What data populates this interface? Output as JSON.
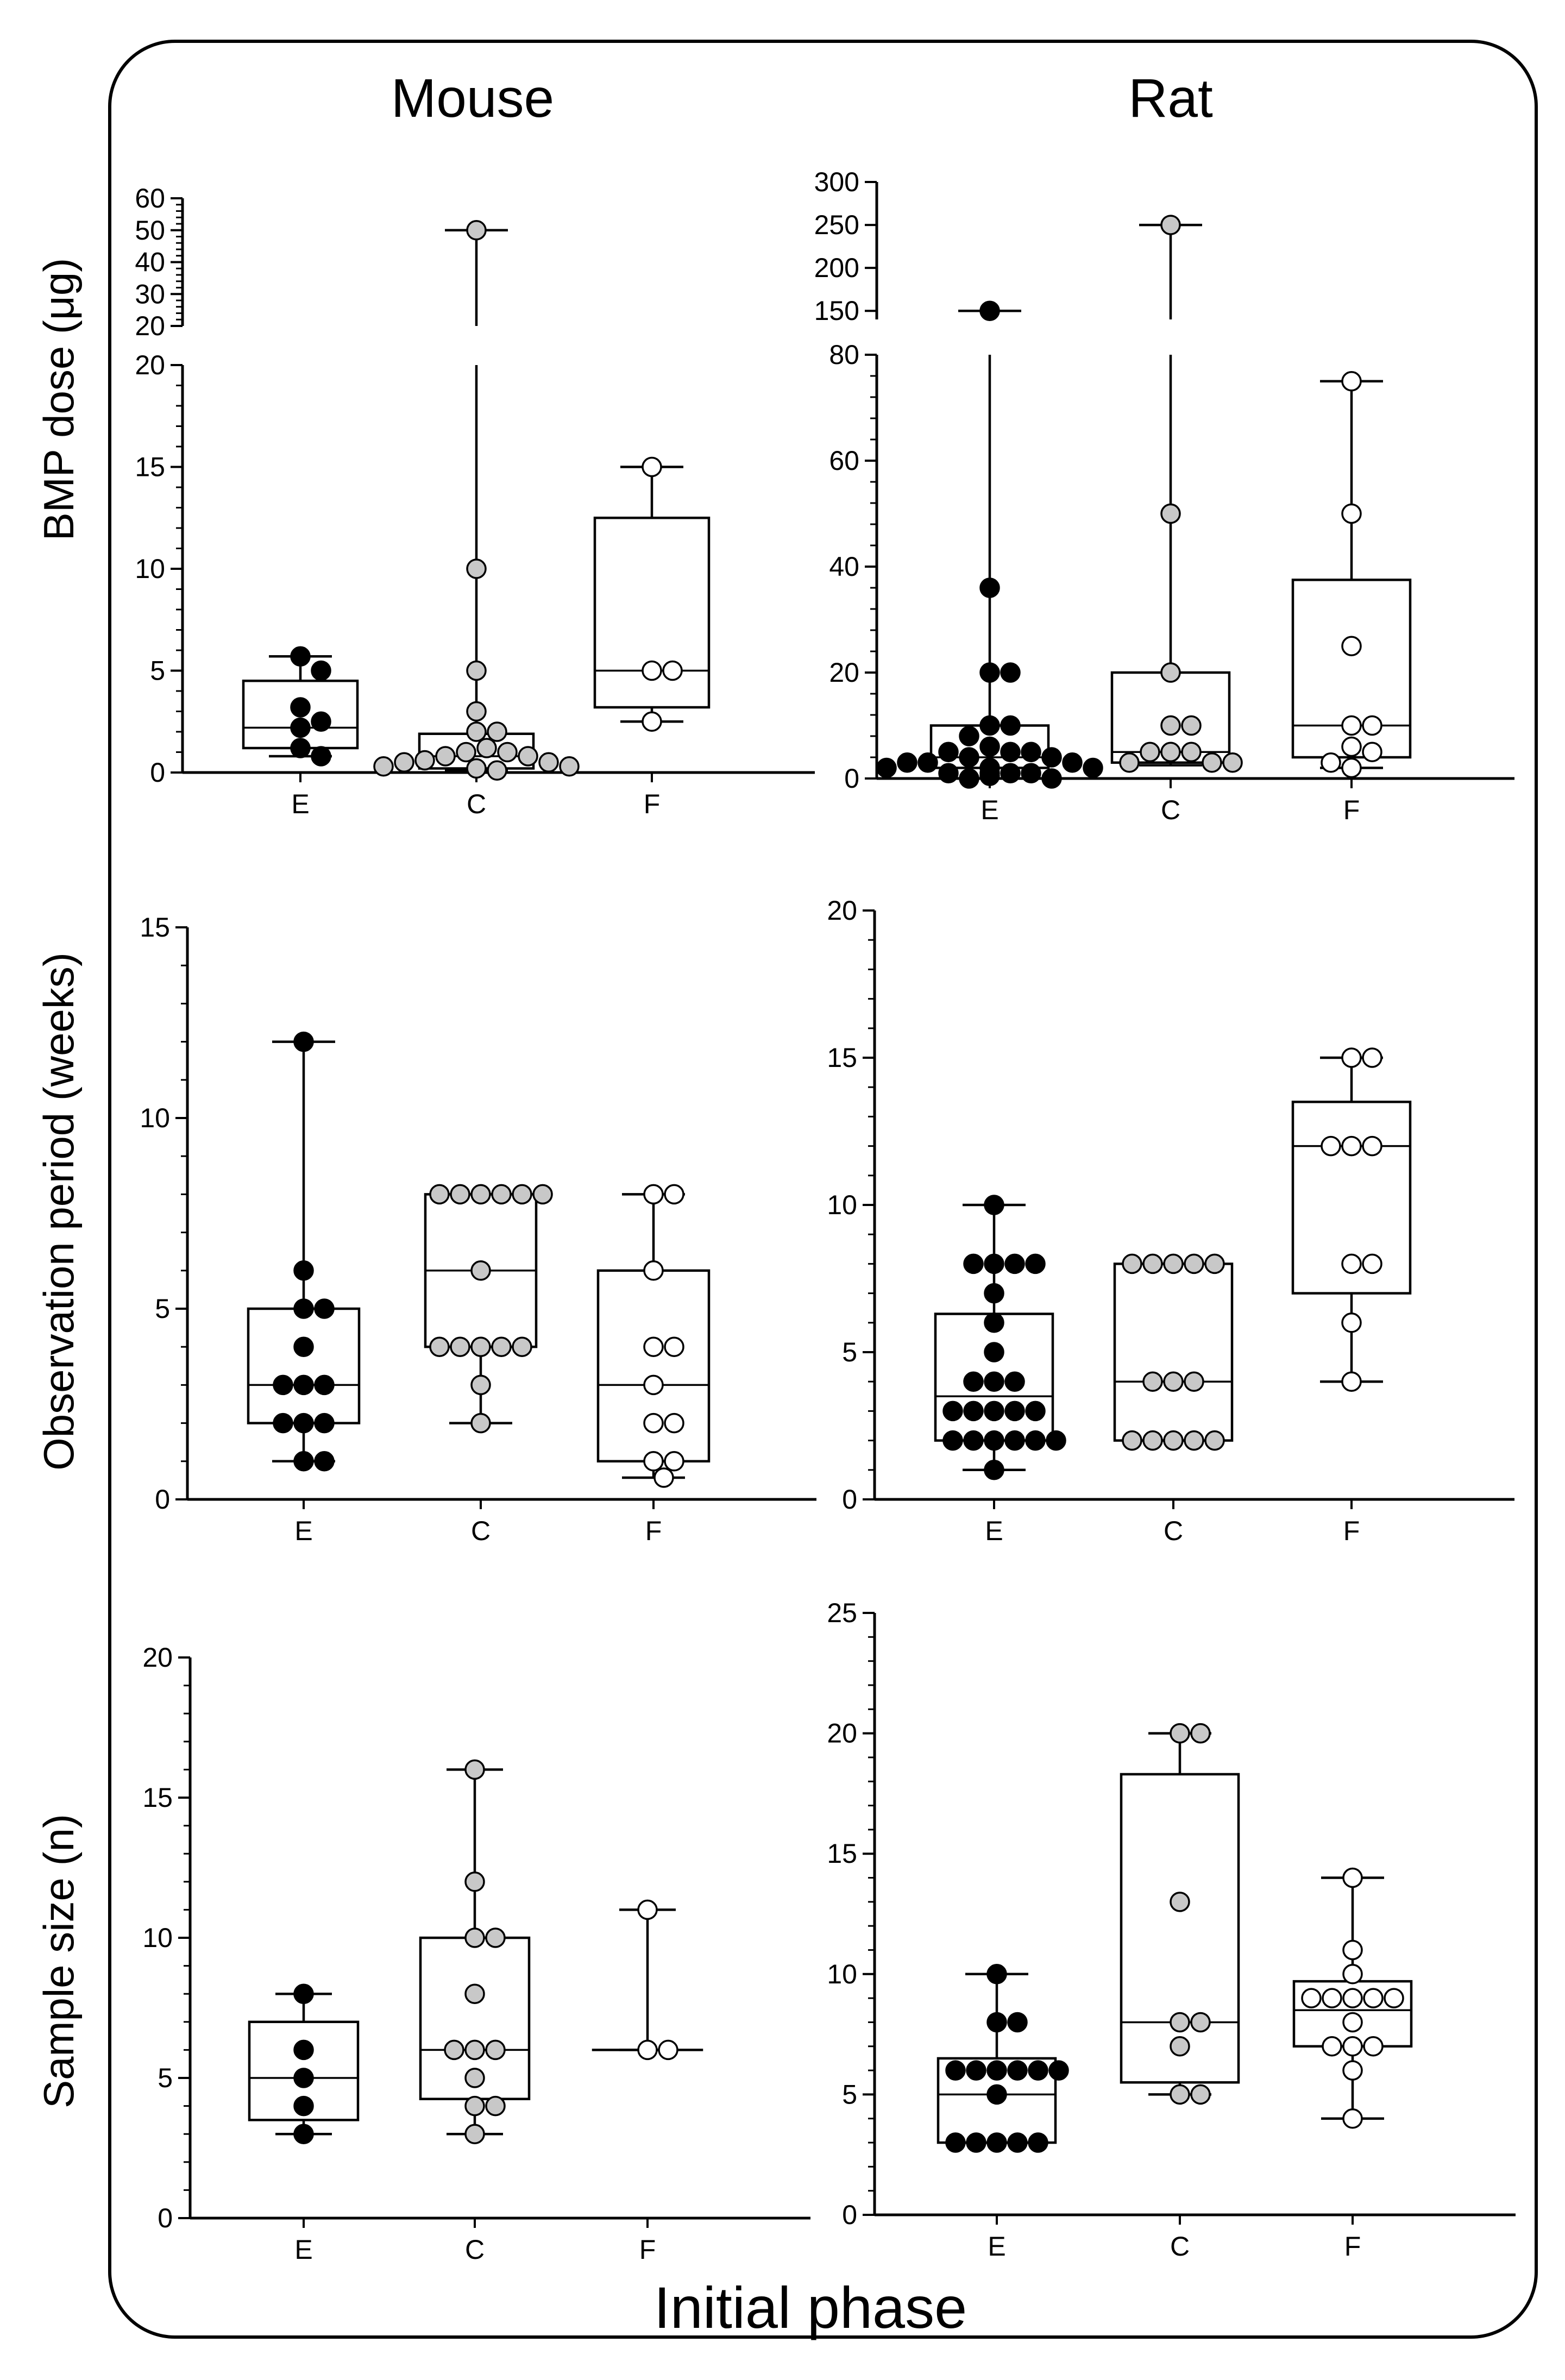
{
  "column_titles": [
    "Mouse",
    "Rat"
  ],
  "xlabel": "Initial phase",
  "row_ylabels": [
    "BMP dose (μg)",
    "Observation period (weeks)",
    "Sample size (n)"
  ],
  "colors": {
    "E": "#000000",
    "C": "#c8c8c8",
    "F": "#ffffff"
  },
  "chart_data": [
    {
      "type": "box",
      "panel": "Mouse – BMP dose",
      "ylabel": "BMP dose (μg)",
      "categories": [
        "E",
        "C",
        "F"
      ],
      "broken_axis": true,
      "ylim_lower": [
        0,
        20
      ],
      "yticks_lower": [
        0,
        5,
        10,
        15,
        20
      ],
      "ylim_upper": [
        20,
        60
      ],
      "yticks_upper": [
        20,
        30,
        40,
        50,
        60
      ],
      "boxes": [
        {
          "category": "E",
          "min": 0.8,
          "q1": 1.2,
          "median": 2.2,
          "q3": 4.5,
          "max": 5.7
        },
        {
          "category": "C",
          "min": 0.1,
          "q1": 0.2,
          "median": 0.8,
          "q3": 1.9,
          "max": 50
        },
        {
          "category": "F",
          "min": 2.5,
          "q1": 3.2,
          "median": 5,
          "q3": 12.5,
          "max": 15
        }
      ],
      "points": [
        {
          "category": "E",
          "values": [
            5.7,
            5.0,
            3.2,
            2.5,
            2.2,
            1.2,
            0.8
          ]
        },
        {
          "category": "C",
          "values": [
            50,
            10,
            5,
            3,
            2,
            2,
            1.2,
            1,
            1,
            0.8,
            0.8,
            0.6,
            0.5,
            0.5,
            0.3,
            0.3,
            0.2,
            0.1
          ]
        },
        {
          "category": "F",
          "values": [
            15,
            5,
            5,
            2.5
          ]
        }
      ]
    },
    {
      "type": "box",
      "panel": "Rat – BMP dose",
      "ylabel": "",
      "categories": [
        "E",
        "C",
        "F"
      ],
      "broken_axis": true,
      "ylim_lower": [
        0,
        80
      ],
      "yticks_lower": [
        0,
        20,
        40,
        60,
        80
      ],
      "ylim_upper": [
        140,
        300
      ],
      "yticks_upper": [
        150,
        200,
        250,
        300
      ],
      "boxes": [
        {
          "category": "E",
          "min": 0,
          "q1": 2,
          "median": 4,
          "q3": 10,
          "max": 150
        },
        {
          "category": "C",
          "min": 2.5,
          "q1": 3,
          "median": 5,
          "q3": 20,
          "max": 250
        },
        {
          "category": "F",
          "min": 2,
          "q1": 4,
          "median": 10,
          "q3": 37.5,
          "max": 75
        }
      ],
      "points": [
        {
          "category": "E",
          "values": [
            150,
            36,
            20,
            20,
            10,
            10,
            8,
            6,
            5,
            5,
            5,
            4,
            4,
            3,
            3,
            3,
            2,
            2,
            2,
            1,
            1,
            1,
            1,
            0.5,
            0,
            0
          ]
        },
        {
          "category": "C",
          "values": [
            250,
            50,
            20,
            10,
            10,
            5,
            5,
            5,
            3,
            3,
            3
          ]
        },
        {
          "category": "F",
          "values": [
            75,
            50,
            25,
            10,
            10,
            6,
            5,
            3,
            2
          ]
        }
      ]
    },
    {
      "type": "box",
      "panel": "Mouse – Observation period",
      "ylabel": "Observation period (weeks)",
      "categories": [
        "E",
        "C",
        "F"
      ],
      "ylim": [
        0,
        15
      ],
      "yticks": [
        0,
        5,
        10,
        15
      ],
      "boxes": [
        {
          "category": "E",
          "min": 1,
          "q1": 2,
          "median": 3,
          "q3": 5,
          "max": 12
        },
        {
          "category": "C",
          "min": 2,
          "q1": 4,
          "median": 6,
          "q3": 8,
          "max": 8
        },
        {
          "category": "F",
          "min": 0.57,
          "q1": 1,
          "median": 3,
          "q3": 6,
          "max": 8
        }
      ],
      "points": [
        {
          "category": "E",
          "values": [
            12,
            6,
            5,
            5,
            4,
            3,
            3,
            3,
            2,
            2,
            2,
            1,
            1
          ]
        },
        {
          "category": "C",
          "values": [
            8,
            8,
            8,
            8,
            8,
            8,
            6,
            4,
            4,
            4,
            4,
            4,
            3,
            2
          ]
        },
        {
          "category": "F",
          "values": [
            8,
            8,
            6,
            4,
            4,
            3,
            2,
            2,
            1,
            1,
            0.57
          ]
        }
      ]
    },
    {
      "type": "box",
      "panel": "Rat – Observation period",
      "ylabel": "",
      "categories": [
        "E",
        "C",
        "F"
      ],
      "ylim": [
        0,
        20
      ],
      "yticks": [
        0,
        5,
        10,
        15,
        20
      ],
      "boxes": [
        {
          "category": "E",
          "min": 1,
          "q1": 2,
          "median": 3.5,
          "q3": 6.3,
          "max": 10
        },
        {
          "category": "C",
          "min": 2,
          "q1": 2,
          "median": 4,
          "q3": 8,
          "max": 8
        },
        {
          "category": "F",
          "min": 4,
          "q1": 7,
          "median": 12,
          "q3": 13.5,
          "max": 15
        }
      ],
      "points": [
        {
          "category": "E",
          "values": [
            10,
            8,
            8,
            8,
            8,
            7,
            6,
            5,
            4,
            4,
            4,
            3,
            3,
            3,
            3,
            3,
            2,
            2,
            2,
            2,
            2,
            2,
            1
          ]
        },
        {
          "category": "C",
          "values": [
            8,
            8,
            8,
            8,
            8,
            4,
            4,
            4,
            2,
            2,
            2,
            2,
            2
          ]
        },
        {
          "category": "F",
          "values": [
            15,
            15,
            12,
            12,
            12,
            8,
            8,
            6,
            4
          ]
        }
      ]
    },
    {
      "type": "box",
      "panel": "Mouse – Sample size",
      "ylabel": "Sample size (n)",
      "categories": [
        "E",
        "C",
        "F"
      ],
      "ylim": [
        0,
        20
      ],
      "yticks": [
        0,
        5,
        10,
        15,
        20
      ],
      "boxes": [
        {
          "category": "E",
          "min": 3,
          "q1": 3.5,
          "median": 5,
          "q3": 7,
          "max": 8
        },
        {
          "category": "C",
          "min": 3,
          "q1": 4.25,
          "median": 6,
          "q3": 10,
          "max": 16
        },
        {
          "category": "F",
          "min": 6,
          "q1": 6,
          "median": 6,
          "q3": 6,
          "max": 11
        }
      ],
      "points": [
        {
          "category": "E",
          "values": [
            8,
            6,
            5,
            4,
            3
          ]
        },
        {
          "category": "C",
          "values": [
            16,
            12,
            10,
            10,
            8,
            6,
            6,
            6,
            5,
            4,
            4,
            3
          ]
        },
        {
          "category": "F",
          "values": [
            11,
            6,
            6
          ]
        }
      ]
    },
    {
      "type": "box",
      "panel": "Rat – Sample size",
      "ylabel": "",
      "categories": [
        "E",
        "C",
        "F"
      ],
      "ylim": [
        0,
        25
      ],
      "yticks": [
        0,
        5,
        10,
        15,
        20,
        25
      ],
      "boxes": [
        {
          "category": "E",
          "min": 3,
          "q1": 3,
          "median": 5,
          "q3": 6.5,
          "max": 10
        },
        {
          "category": "C",
          "min": 5,
          "q1": 5.5,
          "median": 8,
          "q3": 18.3,
          "max": 20
        },
        {
          "category": "F",
          "min": 4,
          "q1": 7,
          "median": 8.5,
          "q3": 9.7,
          "max": 14
        }
      ],
      "points": [
        {
          "category": "E",
          "values": [
            10,
            8,
            8,
            6,
            6,
            6,
            6,
            6,
            6,
            5,
            3,
            3,
            3,
            3,
            3
          ]
        },
        {
          "category": "C",
          "values": [
            20,
            20,
            13,
            8,
            8,
            7,
            5,
            5
          ]
        },
        {
          "category": "F",
          "values": [
            14,
            11,
            10,
            9,
            9,
            9,
            9,
            9,
            8,
            7,
            7,
            7,
            6,
            4
          ]
        }
      ]
    }
  ]
}
